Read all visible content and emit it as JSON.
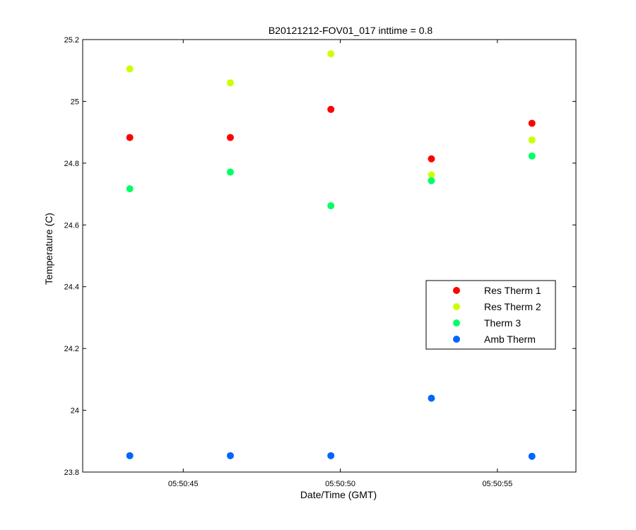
{
  "chart_data": {
    "type": "scatter",
    "title": "B20121212-FOV01_017 inttime = 0.8",
    "xlabel": "Date/Time (GMT)",
    "ylabel": "Temperature (C)",
    "x_tick_labels": [
      "05:50:45",
      "05:50:50",
      "05:50:55"
    ],
    "x_tick_values": [
      45,
      50,
      55
    ],
    "xlim": [
      41.8,
      57.5
    ],
    "ylim": [
      23.8,
      25.2
    ],
    "y_ticks": [
      23.8,
      24,
      24.2,
      24.4,
      24.6,
      24.8,
      25,
      25.2
    ],
    "y_tick_labels": [
      "23.8",
      "24",
      "24.2",
      "24.4",
      "24.6",
      "24.8",
      "25",
      "25.2"
    ],
    "x": [
      43.3,
      46.5,
      49.7,
      52.9,
      56.1
    ],
    "legend_position": "right",
    "grid": false,
    "series": [
      {
        "name": "Res Therm 1",
        "color": "#ff0000",
        "values": [
          24.883,
          24.883,
          24.974,
          24.814,
          24.929
        ]
      },
      {
        "name": "Res Therm 2",
        "color": "#ccff00",
        "values": [
          25.105,
          25.06,
          25.154,
          24.762,
          24.875
        ]
      },
      {
        "name": "Therm 3",
        "color": "#00ff66",
        "values": [
          24.717,
          24.771,
          24.662,
          24.743,
          24.823
        ]
      },
      {
        "name": "Amb Therm",
        "color": "#0066ff",
        "values": [
          23.853,
          23.853,
          23.853,
          24.039,
          23.851
        ]
      }
    ]
  }
}
